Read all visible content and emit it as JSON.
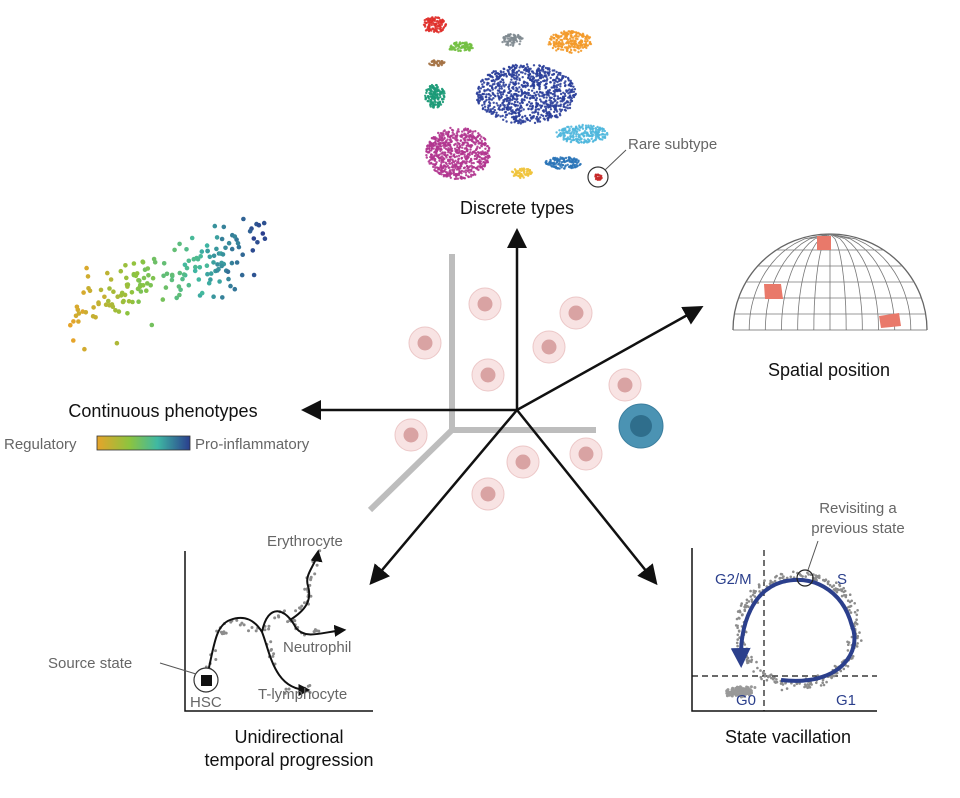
{
  "panels": {
    "discrete": {
      "title": "Discrete types",
      "annotation": "Rare subtype"
    },
    "spatial": {
      "title": "Spatial position"
    },
    "continuous": {
      "title": "Continuous phenotypes",
      "scale_low": "Regulatory",
      "scale_high": "Pro-inflammatory"
    },
    "temporal": {
      "title_line1": "Unidirectional",
      "title_line2": "temporal progression",
      "source_label": "Source state",
      "hsc": "HSC",
      "branches": [
        "Erythrocyte",
        "Neutrophil",
        "T-lymphocyte"
      ]
    },
    "vacillation": {
      "title": "State vacillation",
      "annotation_line1": "Revisiting a",
      "annotation_line2": "previous state",
      "phases": {
        "g2m": "G2/M",
        "s": "S",
        "g0": "G0",
        "g1": "G1"
      }
    }
  },
  "colors": {
    "arrow": "#111111",
    "axis_gray": "#bdbdbd",
    "cell_fill": "#f8e3e3",
    "cell_nucleus": "#d9a3a3",
    "highlight_cell": "#4b93b3",
    "highlight_nucleus": "#2f6e8c",
    "cycle_arrow": "#2b3f8c",
    "grid_highlight": "#e9796a",
    "scatter_gray": "#8c8c8c"
  },
  "clusters": [
    {
      "name": "red",
      "color": "#e0302b"
    },
    {
      "name": "gray",
      "color": "#7f8a90"
    },
    {
      "name": "orange",
      "color": "#f39a2a"
    },
    {
      "name": "green",
      "color": "#73c043"
    },
    {
      "name": "brown",
      "color": "#a47245"
    },
    {
      "name": "navy",
      "color": "#2a3e9a"
    },
    {
      "name": "teal",
      "color": "#1b9a77"
    },
    {
      "name": "lightblue",
      "color": "#4fb7dd"
    },
    {
      "name": "magenta",
      "color": "#b1358f"
    },
    {
      "name": "yellow",
      "color": "#f0c33b"
    },
    {
      "name": "blue",
      "color": "#2a74b8"
    },
    {
      "name": "rare",
      "color": "#c62828"
    }
  ],
  "gradient": [
    "#e6a42a",
    "#8cc43f",
    "#3fb8a3",
    "#2a3e8e"
  ]
}
